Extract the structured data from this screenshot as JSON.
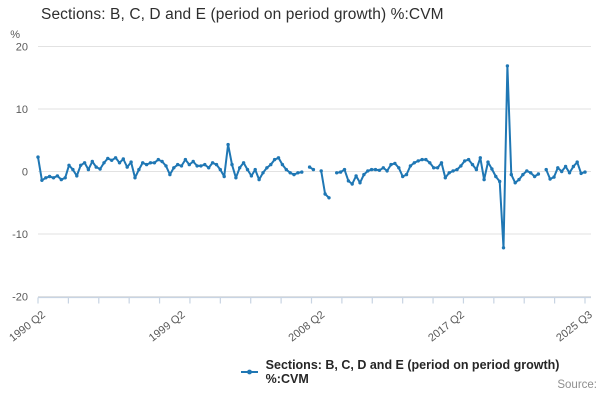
{
  "header": {
    "title": "Sections: B, C, D and E (period on period growth) %:CVM"
  },
  "legend": {
    "label": "Sections: B, C, D and E (period on period growth) %:CVM"
  },
  "footer": {
    "source_label": "Source:"
  },
  "colors": {
    "series": "#1f77b4",
    "grid": "#e2e2e2",
    "axis": "#c8d4e3",
    "tick_text": "#5a5a5a",
    "title_text": "#2e2e2e",
    "source_text": "#8f8f8f"
  },
  "chart_data": {
    "type": "line",
    "title": "Sections: B, C, D and E (period on period growth) %:CVM",
    "unit_label": "%",
    "ylabel": "%",
    "xlabel": "",
    "ylim": [
      -20,
      20
    ],
    "y_ticks": [
      20,
      10,
      0,
      -10,
      -20
    ],
    "grid": "horizontal",
    "legend_position": "bottom",
    "x_frequency": "quarterly",
    "x_first": "1990 Q2",
    "x_last": "2025 Q3",
    "x_count": 142,
    "x_tick_labels": [
      {
        "label": "1990 Q2",
        "index": 0
      },
      {
        "label": "1999 Q2",
        "index": 36
      },
      {
        "label": "2008 Q2",
        "index": 72
      },
      {
        "label": "2017 Q2",
        "index": 108
      },
      {
        "label": "2025 Q3",
        "index": 141
      }
    ],
    "series": [
      {
        "name": "Sections: B, C, D and E (period on period growth) %:CVM",
        "color": "#1f77b4",
        "values": [
          2.3,
          -1.4,
          -1.0,
          -0.8,
          -1.0,
          -0.7,
          -1.3,
          -1.0,
          1.0,
          0.3,
          -0.7,
          1.0,
          1.4,
          0.3,
          1.6,
          0.7,
          0.4,
          1.4,
          2.1,
          1.8,
          2.2,
          1.4,
          2.0,
          0.7,
          1.5,
          -1.0,
          0.3,
          1.4,
          1.1,
          1.4,
          1.4,
          1.9,
          1.6,
          0.9,
          -0.5,
          0.6,
          1.1,
          0.9,
          1.9,
          1.1,
          1.6,
          0.9,
          0.9,
          1.1,
          0.6,
          1.4,
          1.1,
          0.3,
          -0.8,
          4.3,
          1.1,
          -1.0,
          0.6,
          1.4,
          0.3,
          -0.7,
          0.3,
          -1.3,
          -0.2,
          0.6,
          1.1,
          1.9,
          2.2,
          1.1,
          0.3,
          -0.2,
          -0.5,
          -0.2,
          -0.1,
          null,
          0.7,
          0.3,
          null,
          0.1,
          -3.6,
          -4.2,
          null,
          -0.2,
          -0.1,
          0.3,
          -1.5,
          -2.0,
          -0.7,
          -1.8,
          -0.5,
          0.1,
          0.3,
          0.3,
          0.2,
          0.6,
          0.1,
          1.1,
          1.3,
          0.6,
          -0.8,
          -0.5,
          0.9,
          1.4,
          1.7,
          1.9,
          1.9,
          1.4,
          0.6,
          0.6,
          1.4,
          -1.0,
          -0.2,
          0.1,
          0.3,
          0.9,
          1.7,
          1.9,
          1.1,
          0.3,
          2.2,
          -1.3,
          1.5,
          0.4,
          -0.8,
          -1.6,
          -12.2,
          16.9,
          -0.5,
          -1.8,
          -1.3,
          -0.5,
          0.1,
          -0.2,
          -0.8,
          -0.4,
          null,
          0.3,
          -1.2,
          -0.9,
          0.6,
          0.0,
          0.8,
          -0.2,
          0.8,
          1.5,
          -0.3,
          -0.1
        ]
      }
    ]
  }
}
